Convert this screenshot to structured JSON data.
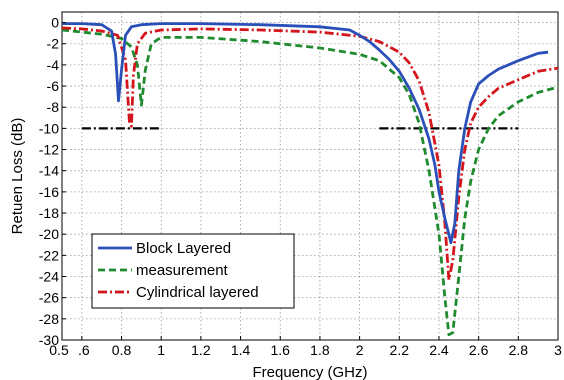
{
  "chart_data": {
    "type": "line",
    "xlabel": "Frequency (GHz)",
    "ylabel": "Retuen Loss (dB)",
    "xlim": [
      0.5,
      3.0
    ],
    "ylim": [
      -30,
      1
    ],
    "grid": true,
    "legend_position": "bottom-left",
    "x_ticks": [
      {
        "value": 0.5,
        "label": "0.5"
      },
      {
        "value": 0.6,
        "label": ".6"
      },
      {
        "value": 0.8,
        "label": "0.8"
      },
      {
        "value": 1.0,
        "label": "1"
      },
      {
        "value": 1.2,
        "label": "1.2"
      },
      {
        "value": 1.4,
        "label": "1.4"
      },
      {
        "value": 1.6,
        "label": "1.6"
      },
      {
        "value": 1.8,
        "label": "1.8"
      },
      {
        "value": 2.0,
        "label": "2"
      },
      {
        "value": 2.2,
        "label": "2.2"
      },
      {
        "value": 2.4,
        "label": "2.4"
      },
      {
        "value": 2.6,
        "label": "2.6"
      },
      {
        "value": 2.8,
        "label": "2.8"
      },
      {
        "value": 3.0,
        "label": "3"
      }
    ],
    "y_ticks": [
      {
        "value": 0,
        "label": "0"
      },
      {
        "value": -2,
        "label": "-2"
      },
      {
        "value": -4,
        "label": "-4"
      },
      {
        "value": -6,
        "label": "-6"
      },
      {
        "value": -8,
        "label": "-8"
      },
      {
        "value": -10,
        "label": "-10"
      },
      {
        "value": -12,
        "label": "-12"
      },
      {
        "value": -14,
        "label": "-14"
      },
      {
        "value": -16,
        "label": "-16"
      },
      {
        "value": -18,
        "label": "-18"
      },
      {
        "value": -20,
        "label": "-20"
      },
      {
        "value": -22,
        "label": "-22"
      },
      {
        "value": -24,
        "label": "-24"
      },
      {
        "value": -26,
        "label": "-26"
      },
      {
        "value": -28,
        "label": "-28"
      },
      {
        "value": -30,
        "label": "-30"
      }
    ],
    "series": [
      {
        "name": "Block Layered",
        "color": "#2b4fb8",
        "dash": "solid",
        "x": [
          0.5,
          0.6,
          0.7,
          0.75,
          0.77,
          0.785,
          0.8,
          0.82,
          0.85,
          0.9,
          1.0,
          1.2,
          1.5,
          1.8,
          1.95,
          2.0,
          2.05,
          2.1,
          2.15,
          2.2,
          2.25,
          2.3,
          2.35,
          2.38,
          2.4,
          2.43,
          2.46,
          2.48,
          2.5,
          2.53,
          2.56,
          2.6,
          2.65,
          2.7,
          2.8,
          2.9,
          2.95
        ],
        "y": [
          -0.1,
          -0.1,
          -0.2,
          -0.8,
          -3.0,
          -7.4,
          -4.5,
          -1.2,
          -0.4,
          -0.2,
          -0.1,
          -0.1,
          -0.2,
          -0.4,
          -0.7,
          -1.2,
          -1.8,
          -2.6,
          -3.5,
          -4.6,
          -6.2,
          -8.2,
          -11.0,
          -13.5,
          -16.0,
          -18.5,
          -20.8,
          -19.0,
          -14.0,
          -10.0,
          -7.5,
          -5.8,
          -5.0,
          -4.4,
          -3.6,
          -2.9,
          -2.8
        ]
      },
      {
        "name": "measurement",
        "color": "#1f8a2e",
        "dash": "dashed",
        "x": [
          0.5,
          0.6,
          0.7,
          0.8,
          0.85,
          0.88,
          0.9,
          0.92,
          0.95,
          1.0,
          1.2,
          1.5,
          1.8,
          2.0,
          2.1,
          2.2,
          2.25,
          2.3,
          2.35,
          2.4,
          2.43,
          2.45,
          2.47,
          2.5,
          2.53,
          2.56,
          2.6,
          2.65,
          2.7,
          2.8,
          2.9,
          3.0
        ],
        "y": [
          -0.7,
          -0.9,
          -1.1,
          -1.5,
          -2.3,
          -4.0,
          -7.8,
          -4.5,
          -2.0,
          -1.4,
          -1.4,
          -1.8,
          -2.4,
          -3.0,
          -3.6,
          -5.2,
          -6.8,
          -9.5,
          -14.0,
          -20.0,
          -26.0,
          -29.5,
          -29.3,
          -24.0,
          -18.5,
          -15.0,
          -12.0,
          -10.0,
          -8.8,
          -7.5,
          -6.6,
          -6.1
        ]
      },
      {
        "name": "Cylindrical layered",
        "color": "#d4151b",
        "dash": "dashdot",
        "x": [
          0.5,
          0.6,
          0.7,
          0.78,
          0.82,
          0.84,
          0.85,
          0.86,
          0.88,
          0.92,
          1.0,
          1.2,
          1.5,
          1.8,
          2.0,
          2.1,
          2.2,
          2.25,
          2.3,
          2.35,
          2.4,
          2.43,
          2.45,
          2.47,
          2.5,
          2.53,
          2.56,
          2.6,
          2.65,
          2.7,
          2.8,
          2.9,
          3.0
        ],
        "y": [
          -0.5,
          -0.6,
          -0.8,
          -1.2,
          -3.5,
          -9.5,
          -9.8,
          -5.0,
          -2.0,
          -1.0,
          -0.7,
          -0.6,
          -0.7,
          -0.9,
          -1.3,
          -1.8,
          -2.8,
          -3.8,
          -5.5,
          -8.5,
          -13.5,
          -19.0,
          -24.3,
          -22.5,
          -16.5,
          -12.0,
          -9.5,
          -8.0,
          -7.0,
          -6.2,
          -5.4,
          -4.6,
          -4.3
        ]
      }
    ],
    "reference_lines": [
      {
        "x": [
          0.6,
          1.0
        ],
        "y": [
          -10,
          -10
        ],
        "color": "#000000",
        "dash": "dashdot"
      },
      {
        "x": [
          2.1,
          2.8
        ],
        "y": [
          -10,
          -10
        ],
        "color": "#000000",
        "dash": "dashdot"
      }
    ]
  }
}
